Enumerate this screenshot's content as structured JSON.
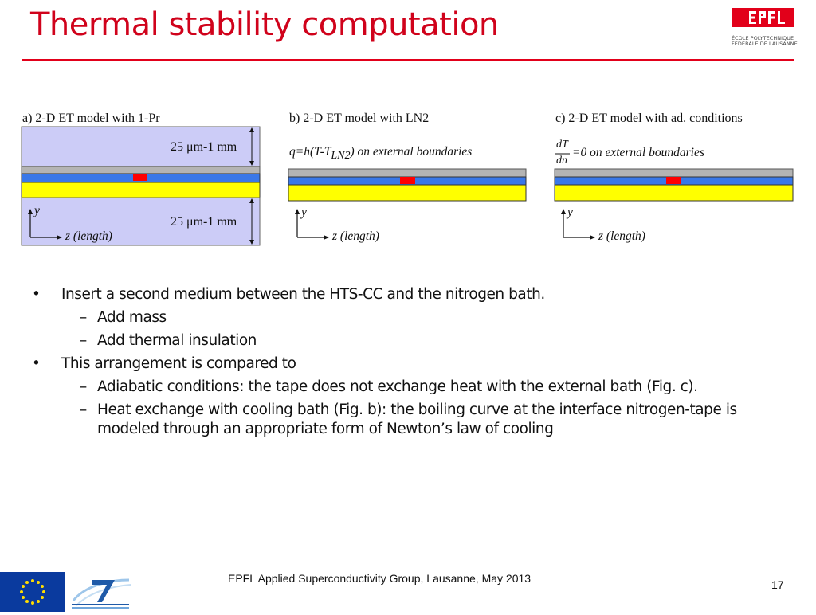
{
  "slide": {
    "title": "Thermal stability computation",
    "accent_color": "#e2001a",
    "title_color": "#d0021b"
  },
  "logo": {
    "icon": "epfl-logo",
    "line1": "ÉCOLE POLYTECHNIQUE",
    "line2": "FÉDÉRALE DE LAUSANNE"
  },
  "figures": {
    "a": {
      "caption": "a) 2-D ET model with 1-Pr",
      "thickness_top": "25 μm-1 mm",
      "thickness_bottom": "25 μm-1 mm",
      "y_axis": "y",
      "z_axis": "z (length)"
    },
    "b": {
      "caption": "b) 2-D ET model with LN2",
      "boundary_pre": "q=h(T-T",
      "boundary_sub": "LN2",
      "boundary_post": ") on external boundaries",
      "y_axis": "y",
      "z_axis": "z (length)"
    },
    "c": {
      "caption": "c) 2-D ET model with ad. conditions",
      "frac_num": "dT",
      "frac_den": "dn",
      "boundary_post": "=0 on external boundaries",
      "y_axis": "y",
      "z_axis": "z (length)"
    },
    "colors": {
      "medium": "#ccccf7",
      "silver": "#b4b4b4",
      "substrate_blue": "#3a78e8",
      "hts_red": "#ff0000",
      "yellow": "#ffff00"
    }
  },
  "bullets": [
    {
      "level": 1,
      "marker": "•",
      "text": "Insert a second medium between the HTS-CC and the nitrogen bath."
    },
    {
      "level": 2,
      "marker": "–",
      "text": "Add mass"
    },
    {
      "level": 2,
      "marker": "–",
      "text": "Add thermal insulation"
    },
    {
      "level": 1,
      "marker": "•",
      "text": "This arrangement is compared to"
    },
    {
      "level": 2,
      "marker": "–",
      "text": "Adiabatic conditions: the tape does not exchange heat with the external bath (Fig. c)."
    },
    {
      "level": 2,
      "marker": "–",
      "text": "Heat exchange with cooling bath (Fig. b): the boiling curve at the interface nitrogen-tape is modeled through an appropriate form of Newton’s law of cooling"
    }
  ],
  "footer": {
    "text": "EPFL Applied Superconductivity Group, Lausanne, May 2013",
    "page_number": "17",
    "eu_flag_icon": "eu-flag-icon",
    "fp7_logo_icon": "fp7-logo-icon"
  }
}
